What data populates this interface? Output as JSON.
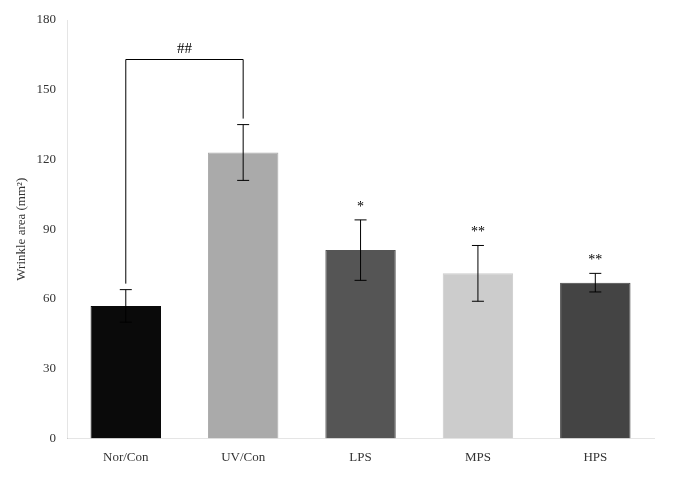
{
  "chart_data": {
    "type": "bar",
    "ylabel": "Wrinkle area (mm²)",
    "categories": [
      "Nor/Con",
      "UV/Con",
      "LPS",
      "MPS",
      "HPS"
    ],
    "values": [
      57,
      123,
      81,
      71,
      67
    ],
    "errors": [
      7,
      12,
      13,
      12,
      4
    ],
    "colors": [
      "#0a0a0a",
      "#aaaaaa",
      "#555555",
      "#cccccc",
      "#444444"
    ],
    "ylim": [
      0,
      180
    ],
    "yticks": [
      0,
      30,
      60,
      90,
      120,
      150,
      180
    ],
    "grid": false,
    "annotations": [
      {
        "category": "LPS",
        "text": "*"
      },
      {
        "category": "MPS",
        "text": "**"
      },
      {
        "category": "HPS",
        "text": "**"
      }
    ],
    "bracket": {
      "from": "Nor/Con",
      "to": "UV/Con",
      "y": 163,
      "label": "##"
    }
  }
}
